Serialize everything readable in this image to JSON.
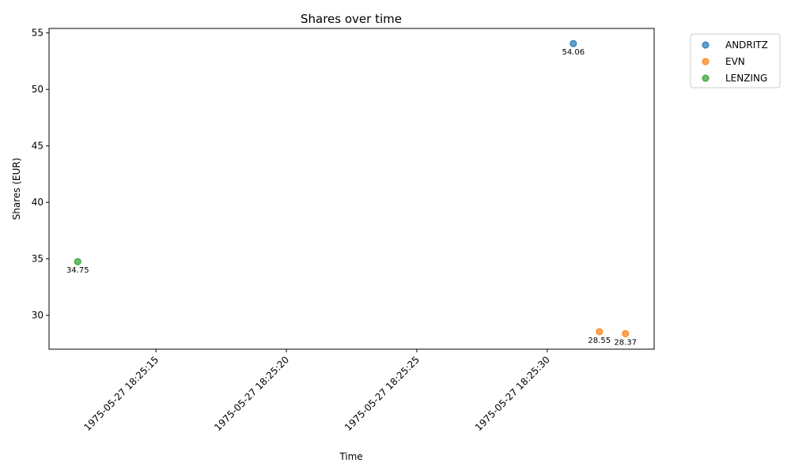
{
  "chart_data": {
    "type": "scatter",
    "title": "Shares over time",
    "xlabel": "Time",
    "ylabel": "Shares (EUR)",
    "x_ticks": [
      "1975-05-27 18:25:15",
      "1975-05-27 18:25:20",
      "1975-05-27 18:25:25",
      "1975-05-27 18:25:30"
    ],
    "y_ticks": [
      30,
      35,
      40,
      45,
      50,
      55
    ],
    "xlim": [
      "1975-05-27 18:25:10.9",
      "1975-05-27 18:25:34.1"
    ],
    "ylim": [
      27.0,
      55.4
    ],
    "grid": false,
    "legend_position": "outside-top-right",
    "series": [
      {
        "name": "ANDRITZ",
        "color": "#1f77b4",
        "points": [
          {
            "x": "1975-05-27 18:25:31.0",
            "y": 54.06,
            "label": "54.06"
          }
        ]
      },
      {
        "name": "EVN",
        "color": "#ff7f0e",
        "points": [
          {
            "x": "1975-05-27 18:25:32.0",
            "y": 28.55,
            "label": "28.55"
          },
          {
            "x": "1975-05-27 18:25:33.0",
            "y": 28.37,
            "label": "28.37"
          }
        ]
      },
      {
        "name": "LENZING",
        "color": "#2ca02c",
        "points": [
          {
            "x": "1975-05-27 18:25:12.0",
            "y": 34.75,
            "label": "34.75"
          }
        ]
      }
    ]
  }
}
